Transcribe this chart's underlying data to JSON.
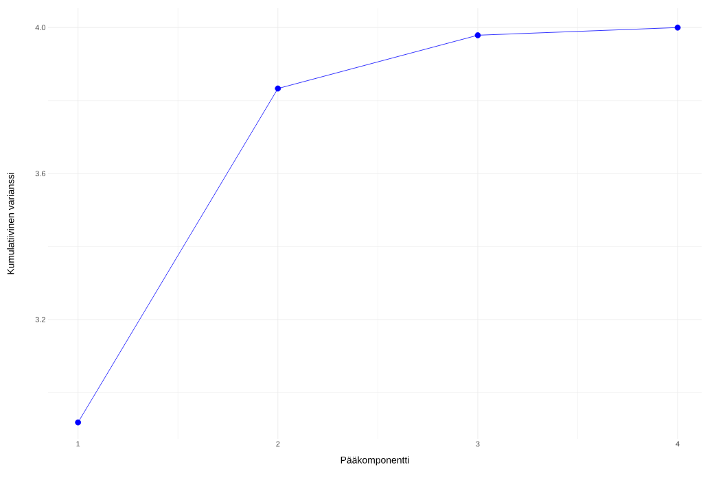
{
  "chart_data": {
    "type": "line",
    "xlabel": "Pääkomponentti",
    "ylabel": "Kumulatiivinen varianssi",
    "x": [
      1,
      2,
      3,
      4
    ],
    "series": [
      {
        "color": "#0000ff",
        "values": [
          2.918,
          3.833,
          3.979,
          4.0
        ]
      }
    ],
    "xlim": [
      0.85,
      4.12
    ],
    "ylim": [
      2.873,
      4.053
    ],
    "xticks": [
      1,
      {
        "value": 1.5,
        "label": null
      },
      2,
      {
        "value": 2.5,
        "label": null
      },
      3,
      {
        "value": 3.5,
        "label": null
      },
      4
    ],
    "yticks": [
      {
        "value": 3.0,
        "label": null
      },
      3.2,
      {
        "value": 3.4,
        "label": null
      },
      3.6,
      {
        "value": 3.8,
        "label": null
      },
      {
        "value": 4.0,
        "label": "4.0"
      }
    ],
    "grid": true,
    "marker": "circle",
    "line_style": "solid"
  }
}
